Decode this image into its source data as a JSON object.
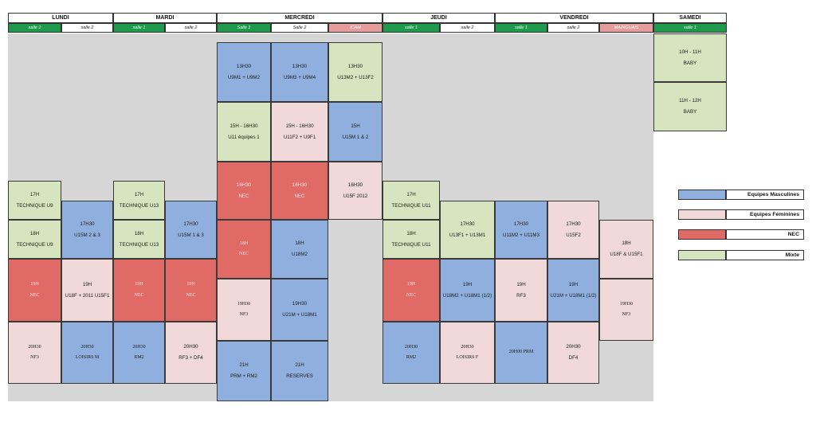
{
  "colors": {
    "blue": "#8fb0de",
    "pink": "#f2d9d9",
    "red": "#e06a66",
    "green": "#d6e4c0",
    "room_green": "#1f9a4c",
    "room_red": "#e59c9c",
    "grid_bg": "#d6d6d6"
  },
  "days": [
    "LUNDI",
    "MARDI",
    "MERCREDI",
    "JEUDI",
    "VENDREDI",
    "SAMEDI"
  ],
  "rooms": [
    {
      "label": "salle 1",
      "style": "green"
    },
    {
      "label": "salle 2",
      "style": "white"
    },
    {
      "label": "salle 1",
      "style": "green"
    },
    {
      "label": "salle 2",
      "style": "white"
    },
    {
      "label": "Salle 1",
      "style": "green"
    },
    {
      "label": "Salle 2",
      "style": "white"
    },
    {
      "label": "ICAM",
      "style": "red"
    },
    {
      "label": "salle 1",
      "style": "green"
    },
    {
      "label": "salle 2",
      "style": "white"
    },
    {
      "label": "salle 1",
      "style": "green"
    },
    {
      "label": "salle 2",
      "style": "white"
    },
    {
      "label": "MAINGUAIS",
      "style": "red"
    },
    {
      "label": "salle 1",
      "style": "green"
    }
  ],
  "slots": [
    {
      "col": 0,
      "time": "17H",
      "team": "TECHNIQUE U9",
      "color": "green"
    },
    {
      "col": 0,
      "time": "18H",
      "team": "TECHNIQUE U9",
      "color": "green"
    },
    {
      "col": 0,
      "time": "19H",
      "team": "NEC",
      "color": "red",
      "serif": true
    },
    {
      "col": 0,
      "time": "20H30",
      "team": "NF3",
      "color": "pink",
      "serif": true
    },
    {
      "col": 1,
      "time": "17H30",
      "team": "U15M 2 & 3",
      "color": "blue"
    },
    {
      "col": 1,
      "time": "19H",
      "team": "U18F + 2011 U15F1",
      "color": "pink"
    },
    {
      "col": 1,
      "time": "20H30",
      "team": "LOISIRS M",
      "color": "blue",
      "serif": true
    },
    {
      "col": 2,
      "time": "17H",
      "team": "TECHNIQUE U13",
      "color": "green"
    },
    {
      "col": 2,
      "time": "18H",
      "team": "TECHNIQUE U13",
      "color": "green"
    },
    {
      "col": 2,
      "time": "19H",
      "team": "NEC",
      "color": "red",
      "serif": true
    },
    {
      "col": 2,
      "time": "20H30",
      "team": "RM2",
      "color": "blue",
      "serif": true
    },
    {
      "col": 3,
      "time": "17H30",
      "team": "U15M 1 & 3",
      "color": "blue"
    },
    {
      "col": 3,
      "time": "19H",
      "team": "NEC",
      "color": "red",
      "serif": true
    },
    {
      "col": 3,
      "time": "20H30",
      "team": "RF3 + DF4",
      "color": "pink"
    },
    {
      "col": 4,
      "time": "13H30",
      "team": "U9M1 + U9M2",
      "color": "blue"
    },
    {
      "col": 4,
      "time": "15H - 16H30",
      "team": "U11 équipes 1",
      "color": "green"
    },
    {
      "col": 4,
      "time": "16H30",
      "team": "NEC",
      "color": "red"
    },
    {
      "col": 4,
      "time": "18H",
      "team": "NEC",
      "color": "red",
      "serif": true
    },
    {
      "col": 4,
      "time": "19H30",
      "team": "NF3",
      "color": "pink",
      "serif": true
    },
    {
      "col": 4,
      "time": "21H",
      "team": "PRM + RM2",
      "color": "blue"
    },
    {
      "col": 5,
      "time": "13H30",
      "team": "U9M3 + U9M4",
      "color": "blue"
    },
    {
      "col": 5,
      "time": "15H - 16H30",
      "team": "U11F2 + U9F1",
      "color": "pink"
    },
    {
      "col": 5,
      "time": "16H30",
      "team": "NEC",
      "color": "red"
    },
    {
      "col": 5,
      "time": "18H",
      "team": "U18M2",
      "color": "blue"
    },
    {
      "col": 5,
      "time": "19H30",
      "team": "U21M + U18M1",
      "color": "blue"
    },
    {
      "col": 5,
      "time": "21H",
      "team": "RESERVES",
      "color": "blue"
    },
    {
      "col": 6,
      "time": "13H30",
      "team": "U13M2 + U13F2",
      "color": "green"
    },
    {
      "col": 6,
      "time": "15H",
      "team": "U15M 1 & 2",
      "color": "blue"
    },
    {
      "col": 6,
      "time": "16H30",
      "team": "U15F 2012",
      "color": "pink"
    },
    {
      "col": 7,
      "time": "17H",
      "team": "TECHNIQUE U11",
      "color": "green"
    },
    {
      "col": 7,
      "time": "18H",
      "team": "TECHNIQUE U11",
      "color": "green"
    },
    {
      "col": 7,
      "time": "19H",
      "team": "NEC",
      "color": "red",
      "serif": true
    },
    {
      "col": 7,
      "time": "20H30",
      "team": "RM2",
      "color": "blue",
      "serif": true
    },
    {
      "col": 8,
      "time": "17H30",
      "team": "U13F1 + U13M1",
      "color": "green"
    },
    {
      "col": 8,
      "time": "19H",
      "team": "U18M2 + U18M1 (1/2)",
      "color": "blue"
    },
    {
      "col": 8,
      "time": "20H30",
      "team": "LOISIRS F",
      "color": "pink",
      "serif": true
    },
    {
      "col": 9,
      "time": "17H30",
      "team": "U11M2 + U11M3",
      "color": "blue"
    },
    {
      "col": 9,
      "time": "19H",
      "team": "RF3",
      "color": "pink"
    },
    {
      "col": 9,
      "time": "20H00 PRM",
      "team": "",
      "color": "blue",
      "serif": true
    },
    {
      "col": 10,
      "time": "17H30",
      "team": "U15F2",
      "color": "pink"
    },
    {
      "col": 10,
      "time": "19H",
      "team": "U21M + U18M1 (1/2)",
      "color": "blue"
    },
    {
      "col": 10,
      "time": "20H30",
      "team": "DF4",
      "color": "pink"
    },
    {
      "col": 11,
      "time": "18H",
      "team": "U18F & U15F1",
      "color": "pink"
    },
    {
      "col": 11,
      "time": "19H30",
      "team": "NF3",
      "color": "pink",
      "serif": true
    },
    {
      "col": 12,
      "time": "10H - 11H",
      "team": "BABY",
      "color": "green"
    },
    {
      "col": 12,
      "time": "11H - 12H",
      "team": "BABY",
      "color": "green"
    }
  ],
  "legend": [
    {
      "label": "Equipes Masculines",
      "color": "blue"
    },
    {
      "label": "Equipes Féminines",
      "color": "pink"
    },
    {
      "label": "NEC",
      "color": "red"
    },
    {
      "label": "Mixte",
      "color": "green"
    }
  ]
}
